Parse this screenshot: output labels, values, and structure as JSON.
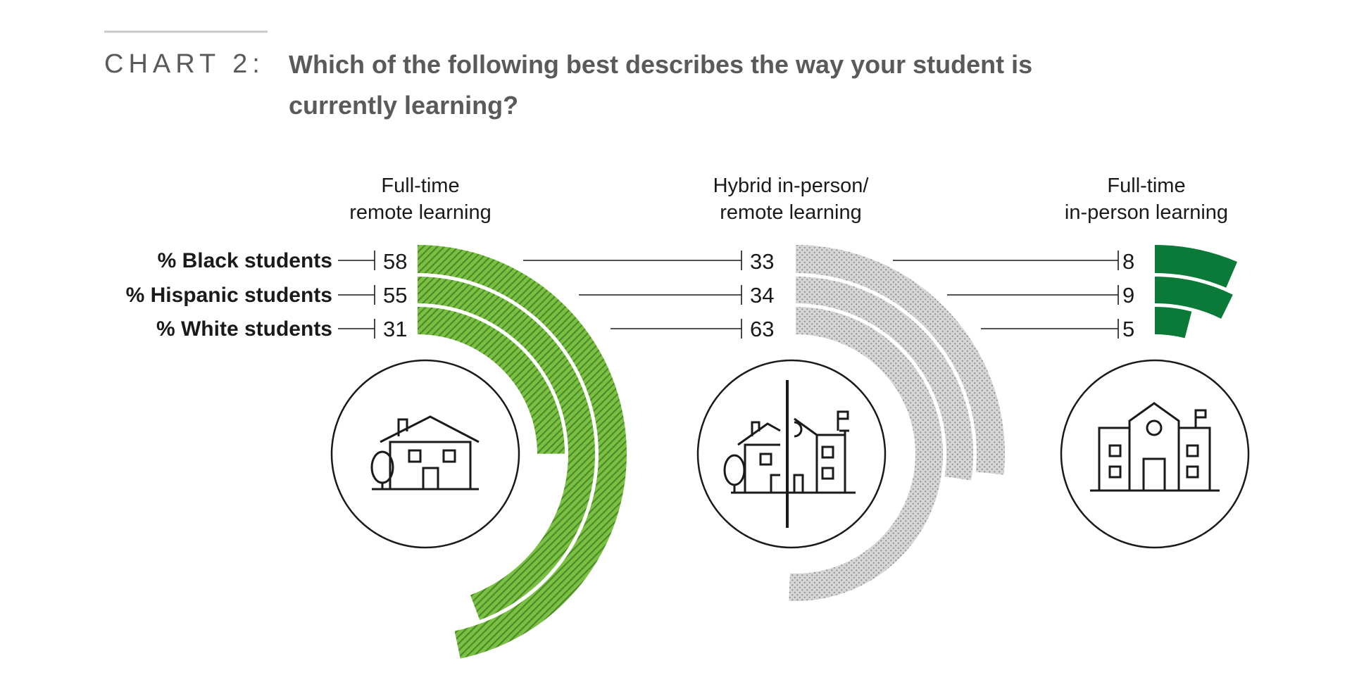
{
  "header": {
    "chart_label": "CHART 2:",
    "title_line1": "Which of the following best describes the way your student is",
    "title_line2": "currently learning?"
  },
  "colors": {
    "remote": "#7ac142",
    "remote_hatch": "#4d8a2a",
    "hybrid": "#d6d6d6",
    "hybrid_dots": "#8a8a8a",
    "inperson": "#0b7a39",
    "text_dark": "#1a1a1a",
    "text_gray": "#5a5a5a",
    "rule": "#c8c8c8"
  },
  "icons": [
    "house-icon",
    "house-school-split-icon",
    "school-icon"
  ],
  "chart_data": {
    "type": "radial-bar",
    "title": "Which of the following best describes the way your student is currently learning?",
    "unit": "%",
    "categories": [
      "Full-time remote learning",
      "Hybrid in-person/ remote learning",
      "Full-time in-person learning"
    ],
    "category_lines": [
      [
        "Full-time",
        "remote learning"
      ],
      [
        "Hybrid in-person/",
        "remote learning"
      ],
      [
        "Full-time",
        "in-person learning"
      ]
    ],
    "series": [
      {
        "name": "% Black students",
        "values": [
          58,
          33,
          8
        ]
      },
      {
        "name": "% Hispanic students",
        "values": [
          55,
          34,
          9
        ]
      },
      {
        "name": "% White students",
        "values": [
          31,
          63,
          5
        ]
      }
    ]
  }
}
